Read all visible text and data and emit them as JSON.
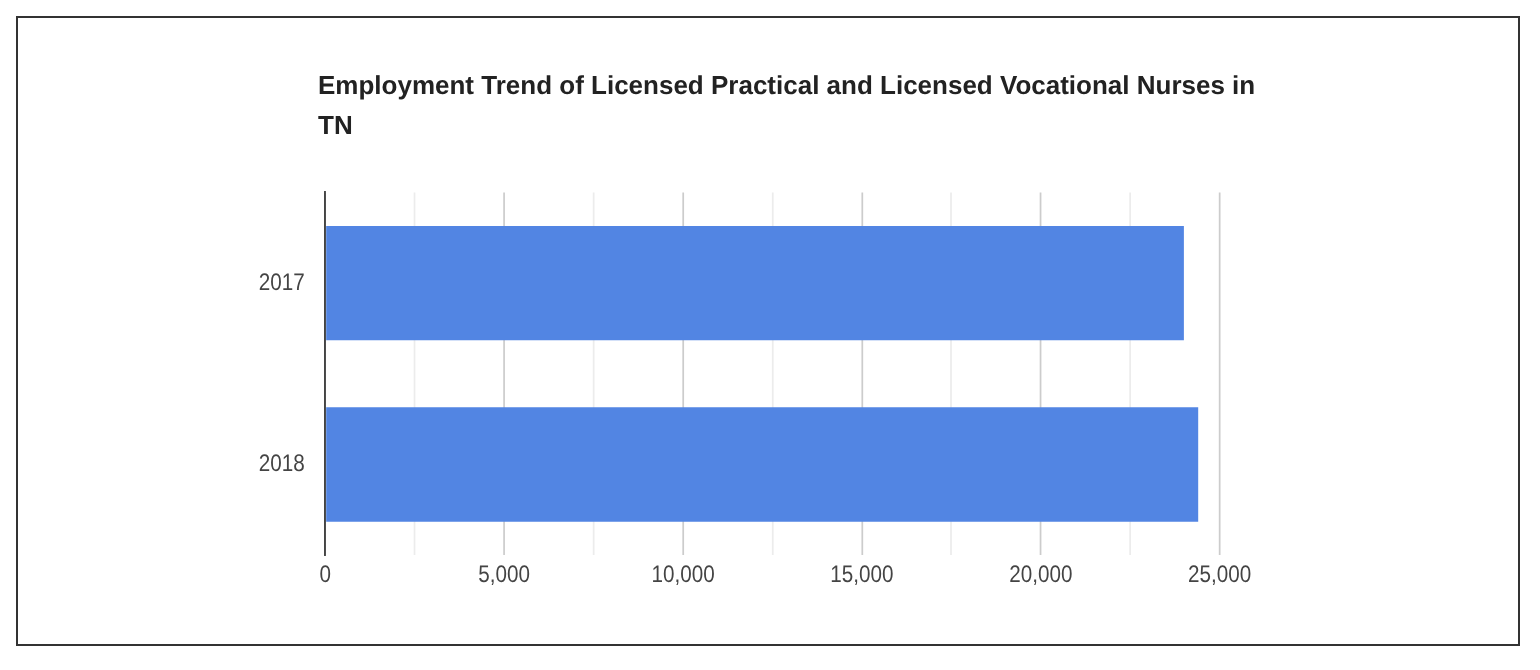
{
  "chart_data": {
    "type": "bar",
    "orientation": "horizontal",
    "title": "Employment Trend of Licensed Practical and Licensed Vocational Nurses in TN",
    "categories": [
      "2017",
      "2018"
    ],
    "values": [
      24000,
      24400
    ],
    "color": "#5285e3",
    "xlim": [
      0,
      25000
    ],
    "xticks": [
      0,
      {
        "value": 2500,
        "label": null
      },
      {
        "value": 5000,
        "label": "5,000"
      },
      {
        "value": 7500,
        "label": null
      },
      {
        "value": 10000,
        "label": "10,000"
      },
      {
        "value": 12500,
        "label": null
      },
      {
        "value": 15000,
        "label": "15,000"
      },
      {
        "value": 17500,
        "label": null
      },
      {
        "value": 20000,
        "label": "20,000"
      },
      {
        "value": 22500,
        "label": null
      },
      {
        "value": 25000,
        "label": "25,000"
      }
    ],
    "grid": "x",
    "legend": false
  }
}
